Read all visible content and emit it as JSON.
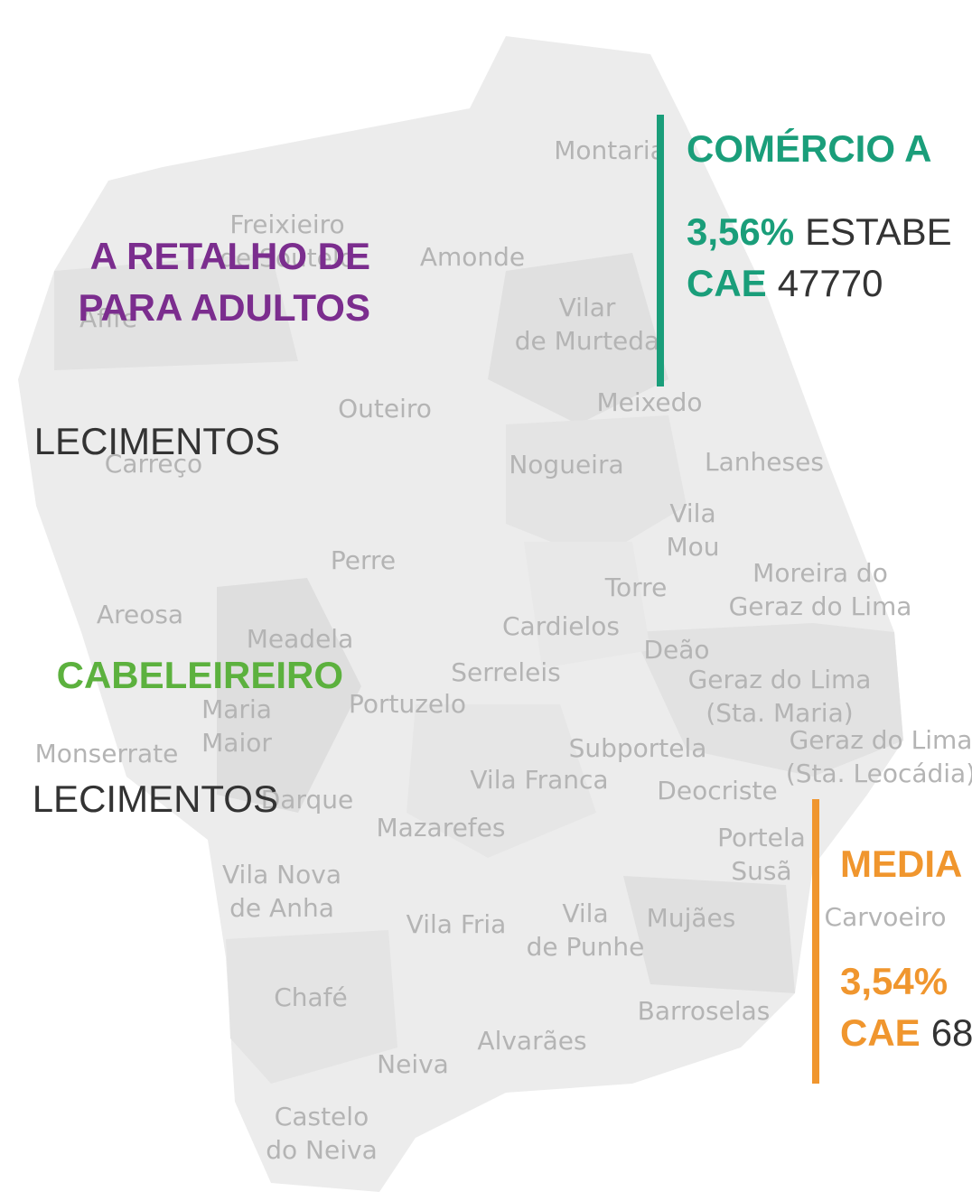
{
  "places": [
    {
      "lines": [
        "Montaria"
      ]
    },
    {
      "lines": [
        "Freixieiro",
        "de Soutelo"
      ]
    },
    {
      "lines": [
        "Amonde"
      ]
    },
    {
      "lines": [
        "Vilar",
        "de Murteda"
      ]
    },
    {
      "lines": [
        "Afife"
      ]
    },
    {
      "lines": [
        "Outeiro"
      ]
    },
    {
      "lines": [
        "Meixedo"
      ]
    },
    {
      "lines": [
        "Carreço"
      ]
    },
    {
      "lines": [
        "Nogueira"
      ]
    },
    {
      "lines": [
        "Lanheses"
      ]
    },
    {
      "lines": [
        "Vila",
        "Mou"
      ]
    },
    {
      "lines": [
        "Perre"
      ]
    },
    {
      "lines": [
        "Torre"
      ]
    },
    {
      "lines": [
        "Moreira do",
        "Geraz do Lima"
      ]
    },
    {
      "lines": [
        "Areosa"
      ]
    },
    {
      "lines": [
        "Cardielos"
      ]
    },
    {
      "lines": [
        "Meadela"
      ]
    },
    {
      "lines": [
        "Deão"
      ]
    },
    {
      "lines": [
        "Serreleis"
      ]
    },
    {
      "lines": [
        "Geraz do Lima",
        "(Sta. Maria)"
      ]
    },
    {
      "lines": [
        "Maria",
        "Maior"
      ]
    },
    {
      "lines": [
        "Portuzelo"
      ]
    },
    {
      "lines": [
        "Monserrate"
      ]
    },
    {
      "lines": [
        "Subportela"
      ]
    },
    {
      "lines": [
        "Geraz do Lima",
        "(Sta. Leocádia)"
      ]
    },
    {
      "lines": [
        "Vila Franca"
      ]
    },
    {
      "lines": [
        "Deocriste"
      ]
    },
    {
      "lines": [
        "Darque"
      ]
    },
    {
      "lines": [
        "Mazarefes"
      ]
    },
    {
      "lines": [
        "Portela",
        "Susã"
      ]
    },
    {
      "lines": [
        "Carvoeiro"
      ]
    },
    {
      "lines": [
        "Vila Nova",
        "de Anha"
      ]
    },
    {
      "lines": [
        "Vila Fria"
      ]
    },
    {
      "lines": [
        "Vila",
        "de Punhe"
      ]
    },
    {
      "lines": [
        "Mujães"
      ]
    },
    {
      "lines": [
        "Chafé"
      ]
    },
    {
      "lines": [
        "Barroselas"
      ]
    },
    {
      "lines": [
        "Alvarães"
      ]
    },
    {
      "lines": [
        "Neiva"
      ]
    },
    {
      "lines": [
        "Castelo",
        "do Neiva"
      ]
    }
  ],
  "callouts": [
    {
      "color": "#7b2d8e",
      "title_lines": [
        "A RETALHO DE",
        "PARA ADULTOS"
      ],
      "body": "LECIMENTOS"
    },
    {
      "color": "#5cb13e",
      "title_lines": [
        "CABELEIREIRO"
      ],
      "body": "LECIMENTOS"
    },
    {
      "color": "#1a9e7a",
      "title_lines": [
        "COMÉRCIO A"
      ],
      "percent": "3,56%",
      "body": "ESTABE",
      "cae_label": "CAE",
      "cae": "47770"
    },
    {
      "color": "#f0962e",
      "title_lines": [
        "MEDIA"
      ],
      "percent": "3,54%",
      "cae_label": "CAE",
      "cae": "68"
    }
  ]
}
